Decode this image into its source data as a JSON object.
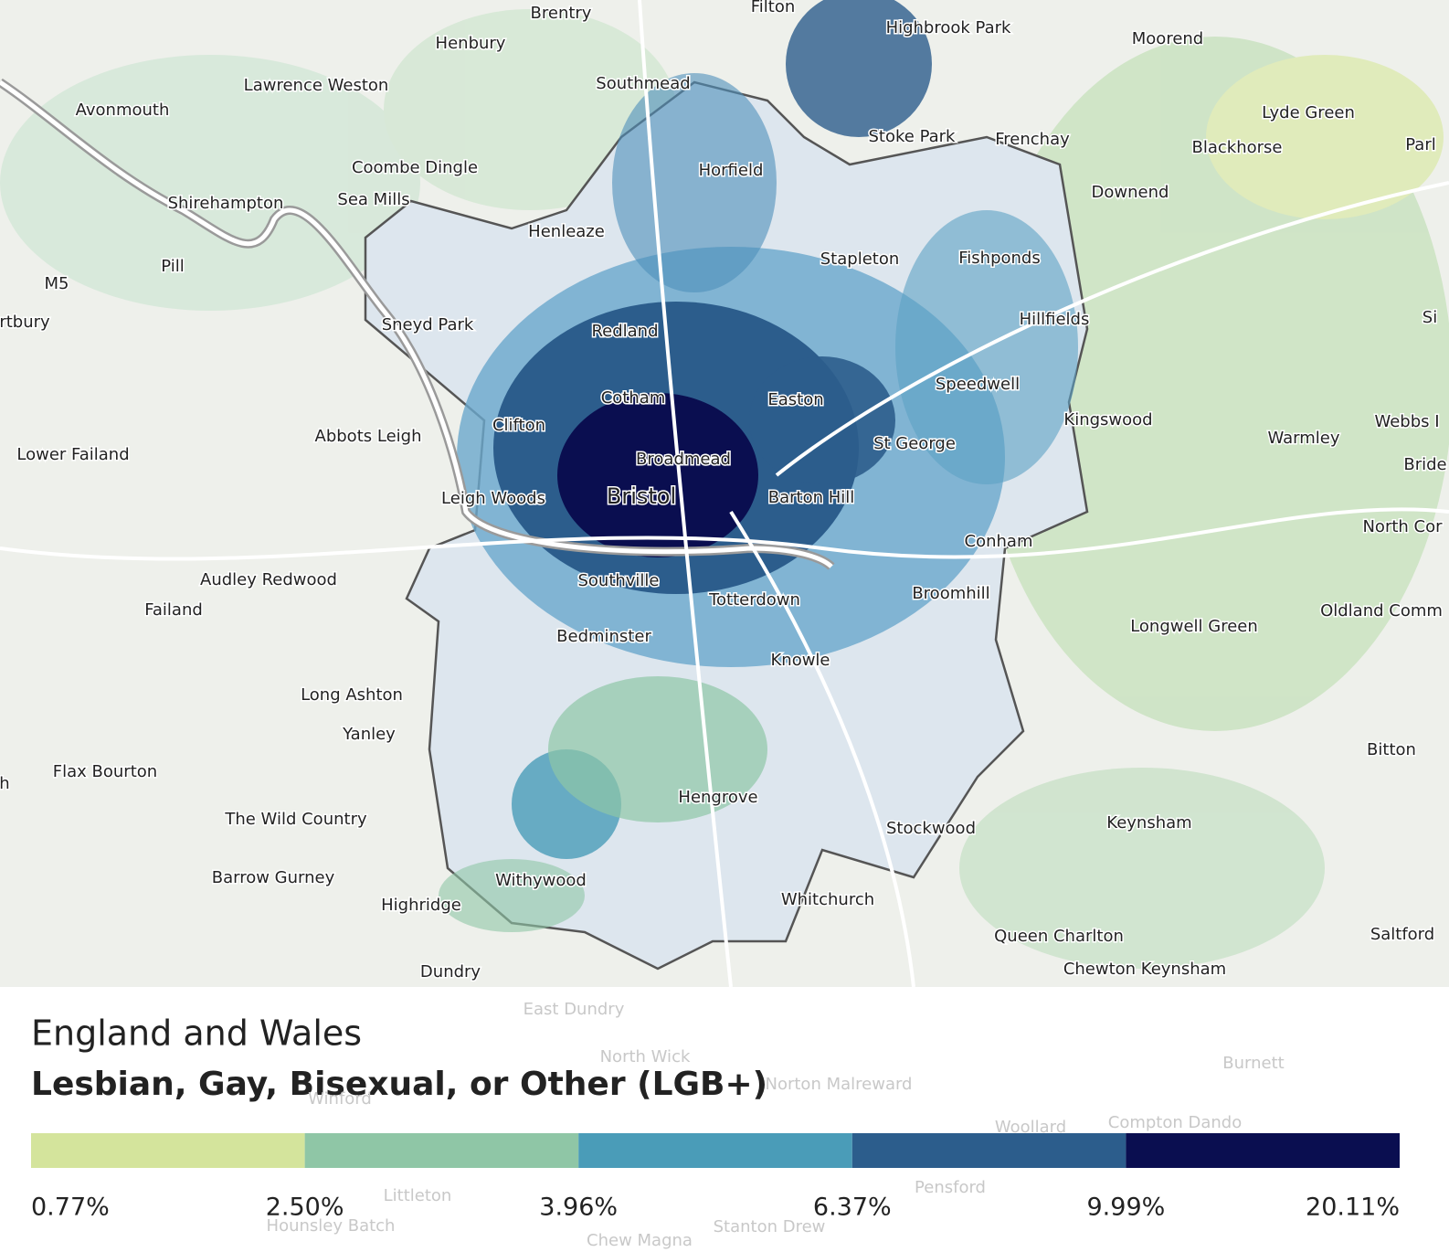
{
  "places": [
    "Brentry",
    "Filton",
    "Highbrook Park",
    "Moorend",
    "Henbury",
    "Lawrence Weston",
    "Southmead",
    "Avonmouth",
    "Lyde Green",
    "Parl",
    "Stoke Park",
    "Frenchay",
    "Blackhorse",
    "Coombe Dingle",
    "Horfield",
    "Downend",
    "Sea Mills",
    "Shirehampton",
    "Henleaze",
    "Stapleton",
    "Fishponds",
    "Pill",
    "M5",
    "Si",
    "rtbury",
    "Sneyd Park",
    "Hillfields",
    "Redland",
    "Speedwell",
    "Easton",
    "Cotham",
    "Kingswood",
    "Webbs I",
    "Clifton",
    "Abbots Leigh",
    "Warmley",
    "St George",
    "Lower Failand",
    "Bride",
    "Broadmead",
    "Leigh Woods",
    "Barton Hill",
    "North Cor",
    "Conham",
    "Audley Redwood",
    "Southville",
    "Broomhill",
    "Totterdown",
    "Failand",
    "Oldland Comm",
    "Longwell Green",
    "Bedminster",
    "Knowle",
    "Long Ashton",
    "Yanley",
    "Bitton",
    "Flax Bourton",
    "h",
    "Hengrove",
    "The Wild Country",
    "Keynsham",
    "Stockwood",
    "Barrow Gurney",
    "Withywood",
    "Whitchurch",
    "Highridge",
    "Queen Charlton",
    "Saltford",
    "Chewton Keynsham",
    "Dundry"
  ],
  "city": "Bristol",
  "faded_places": [
    "East Dundry",
    "North Wick",
    "Burnett",
    "Norton Malreward",
    "Winford",
    "Compton Dando",
    "Woollard",
    "Pensford",
    "Littleton",
    "Hounsley Batch",
    "Stanton Drew",
    "Chew Magna"
  ],
  "legend": {
    "title": "England and Wales",
    "subtitle": "Lesbian, Gay, Bisexual, or Other (LGB+)",
    "colors": [
      "#d4e49c",
      "#8fc6a6",
      "#4a9cb8",
      "#2c5d8c",
      "#0a0e50"
    ],
    "breaks": [
      "0.77%",
      "2.50%",
      "3.96%",
      "6.37%",
      "9.99%",
      "20.11%"
    ]
  }
}
